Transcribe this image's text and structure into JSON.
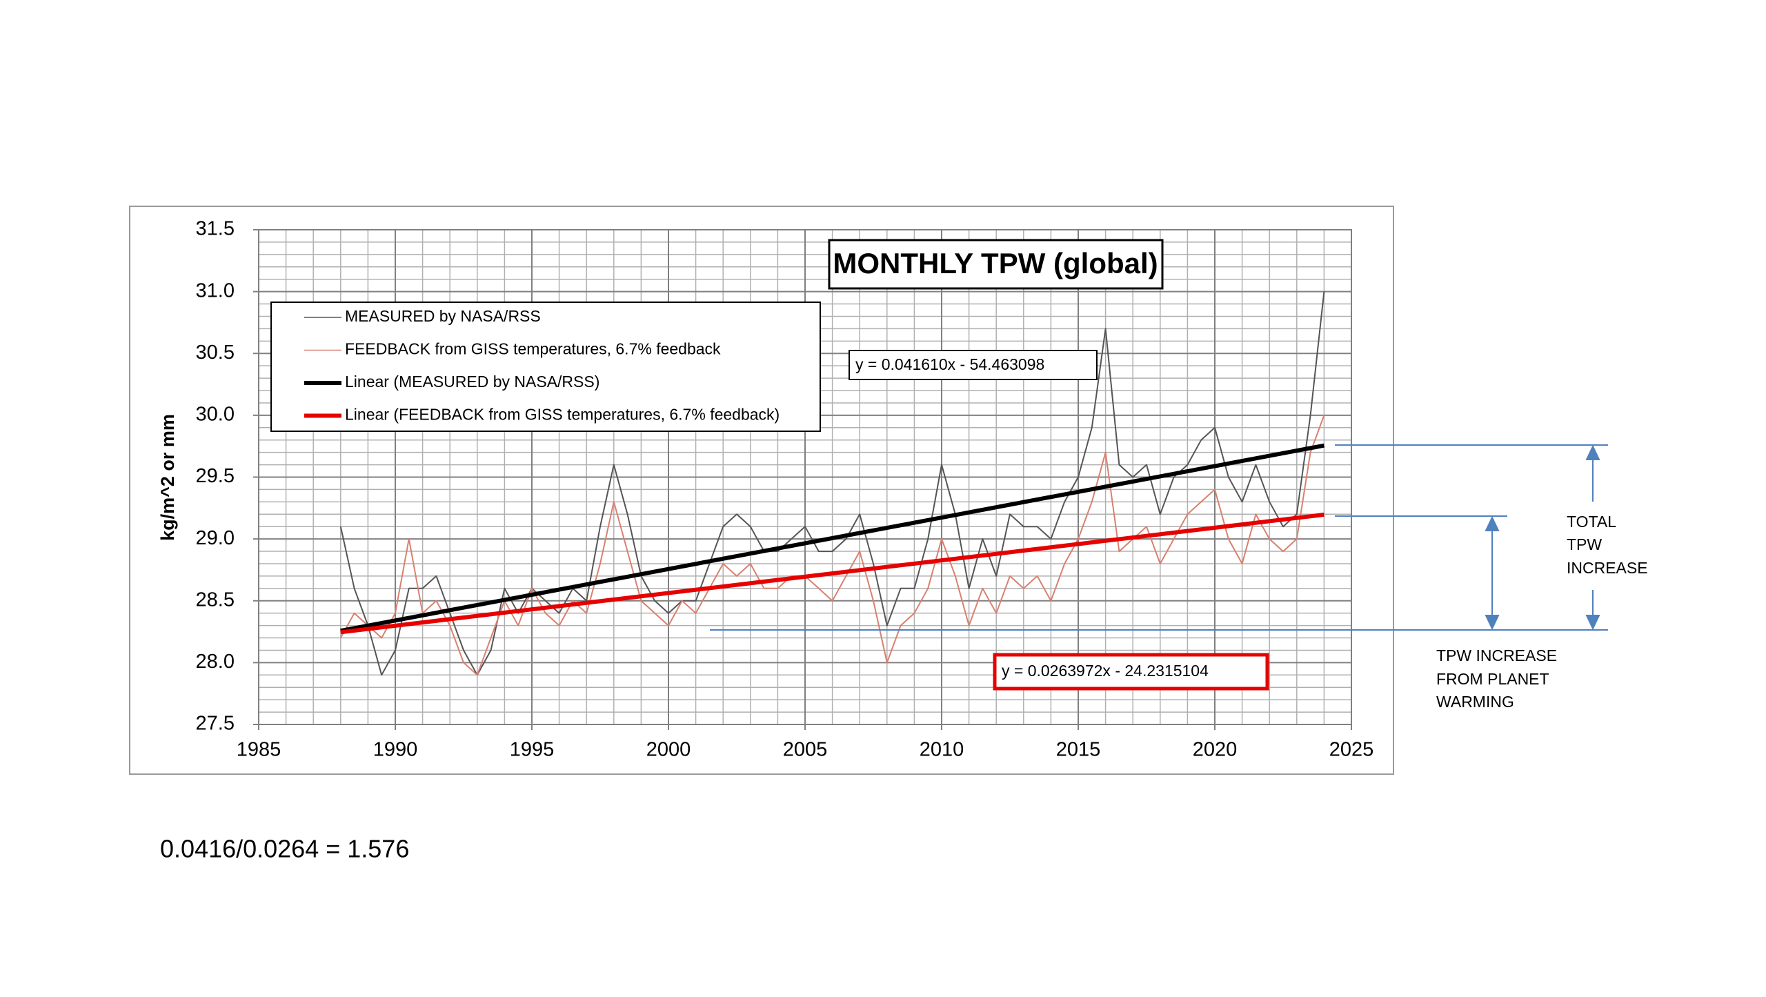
{
  "chart_data": {
    "type": "line",
    "title": "MONTHLY TPW (global)",
    "y_label": "kg/m^2  or mm",
    "xlim": [
      1985,
      2025
    ],
    "xticks": [
      1985,
      1990,
      1995,
      2000,
      2005,
      2010,
      2015,
      2020,
      2025
    ],
    "ylim": [
      27.5,
      31.5
    ],
    "yticks": [
      27.5,
      {
        "value": 28,
        "label": "28.0"
      },
      28.5,
      {
        "value": 29,
        "label": "29.0"
      },
      29.5,
      {
        "value": 30,
        "label": "30.0"
      },
      30.5,
      {
        "value": 31,
        "label": "31.0"
      },
      31.5
    ],
    "grid": true,
    "legend": "upper left",
    "x": [
      1988,
      1988.5,
      1989,
      1989.5,
      1990,
      1990.5,
      1991,
      1991.5,
      1992,
      1992.5,
      1993,
      1993.5,
      1994,
      1994.5,
      1995,
      1995.5,
      1996,
      1996.5,
      1997,
      1997.5,
      1998,
      1998.5,
      1999,
      1999.5,
      2000,
      2000.5,
      2001,
      2001.5,
      2002,
      2002.5,
      2003,
      2003.5,
      2004,
      2004.5,
      2005,
      2005.5,
      2006,
      2006.5,
      2007,
      2007.5,
      2008,
      2008.5,
      2009,
      2009.5,
      2010,
      2010.5,
      2011,
      2011.5,
      2012,
      2012.5,
      2013,
      2013.5,
      2014,
      2014.5,
      2015,
      2015.5,
      2016,
      2016.5,
      2017,
      2017.5,
      2018,
      2018.5,
      2019,
      2019.5,
      2020,
      2020.5,
      2021,
      2021.5,
      2022,
      2022.5,
      2023,
      2023.5,
      2024
    ],
    "series": [
      {
        "name": "MEASURED by NASA/RSS",
        "color": "#555555",
        "values": [
          29.1,
          28.6,
          28.3,
          27.9,
          28.1,
          28.6,
          28.6,
          28.7,
          28.4,
          28.1,
          27.9,
          28.1,
          28.6,
          28.4,
          28.6,
          28.5,
          28.4,
          28.6,
          28.5,
          29.1,
          29.6,
          29.2,
          28.7,
          28.5,
          28.4,
          28.5,
          28.5,
          28.8,
          29.1,
          29.2,
          29.1,
          28.9,
          28.9,
          29.0,
          29.1,
          28.9,
          28.9,
          29.0,
          29.2,
          28.8,
          28.3,
          28.6,
          28.6,
          29.0,
          29.6,
          29.2,
          28.6,
          29.0,
          28.7,
          29.2,
          29.1,
          29.1,
          29.0,
          29.3,
          29.5,
          29.9,
          30.7,
          29.6,
          29.5,
          29.6,
          29.2,
          29.5,
          29.6,
          29.8,
          29.9,
          29.5,
          29.3,
          29.6,
          29.3,
          29.1,
          29.2,
          30.0,
          31.0
        ]
      },
      {
        "name": "FEEDBACK from GISS temperatures, 6.7% feedback",
        "color": "#d9806f",
        "values": [
          28.2,
          28.4,
          28.3,
          28.2,
          28.4,
          29.0,
          28.4,
          28.5,
          28.3,
          28.0,
          27.9,
          28.2,
          28.5,
          28.3,
          28.6,
          28.4,
          28.3,
          28.5,
          28.4,
          28.8,
          29.3,
          28.9,
          28.5,
          28.4,
          28.3,
          28.5,
          28.4,
          28.6,
          28.8,
          28.7,
          28.8,
          28.6,
          28.6,
          28.7,
          28.7,
          28.6,
          28.5,
          28.7,
          28.9,
          28.5,
          28.0,
          28.3,
          28.4,
          28.6,
          29.0,
          28.7,
          28.3,
          28.6,
          28.4,
          28.7,
          28.6,
          28.7,
          28.5,
          28.8,
          29.0,
          29.3,
          29.7,
          28.9,
          29.0,
          29.1,
          28.8,
          29.0,
          29.2,
          29.3,
          29.4,
          29.0,
          28.8,
          29.2,
          29.0,
          28.9,
          29.0,
          29.7,
          30.0
        ]
      },
      {
        "name": "Linear (MEASURED by NASA/RSS)",
        "color": "#000000",
        "x": [
          1988,
          2024
        ],
        "values": [
          28.2576,
          29.7555
        ]
      },
      {
        "name": "Linear (FEEDBACK from GISS temperatures, 6.7% feedback)",
        "color": "#e60000",
        "x": [
          1988,
          2024
        ],
        "values": [
          28.2461,
          29.1964
        ]
      }
    ],
    "annotations": [
      "y = 0.041610x - 54.463098",
      "y = 0.0263972x - 24.2315104"
    ],
    "side_notes": [
      [
        "TOTAL",
        "TPW",
        "INCREASE"
      ],
      [
        "TPW INCREASE",
        "FROM PLANET",
        "WARMING"
      ]
    ],
    "footnote": "0.0416/0.0264 = 1.576"
  }
}
